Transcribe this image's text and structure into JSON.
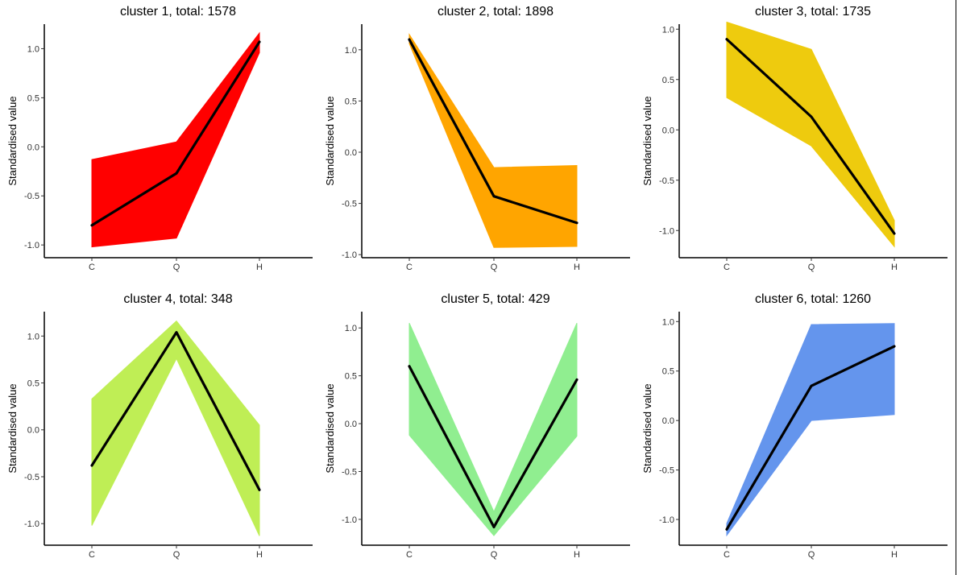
{
  "chart_data": [
    {
      "type": "area",
      "title": "cluster 1, total: 1578",
      "ylabel": "Standardised value",
      "categories": [
        "C",
        "Q",
        "H"
      ],
      "yticks": [
        1.0,
        0.5,
        0.0,
        -0.5,
        -1.0
      ],
      "ylim": [
        -1.13,
        1.25
      ],
      "color": "#ff0000",
      "band": {
        "upper": [
          -0.13,
          0.05,
          1.16
        ],
        "lower": [
          -1.02,
          -0.93,
          0.96
        ]
      },
      "mean": [
        -0.8,
        -0.27,
        1.07
      ]
    },
    {
      "type": "area",
      "title": "cluster 2, total: 1898",
      "ylabel": "Standardised value",
      "categories": [
        "C",
        "Q",
        "H"
      ],
      "yticks": [
        1.0,
        0.5,
        0.0,
        -0.5,
        -1.0
      ],
      "ylim": [
        -1.03,
        1.25
      ],
      "color": "#ffa500",
      "band": {
        "upper": [
          1.15,
          -0.15,
          -0.13
        ],
        "lower": [
          1.06,
          -0.93,
          -0.92
        ]
      },
      "mean": [
        1.1,
        -0.43,
        -0.69
      ]
    },
    {
      "type": "area",
      "title": "cluster 3, total: 1735",
      "ylabel": "Standardised value",
      "categories": [
        "C",
        "Q",
        "H"
      ],
      "yticks": [
        1.0,
        0.5,
        0.0,
        -0.5,
        -1.0
      ],
      "ylim": [
        -1.27,
        1.05
      ],
      "color": "#eecb0e",
      "band": {
        "upper": [
          1.07,
          0.8,
          -0.9
        ],
        "lower": [
          0.32,
          -0.16,
          -1.16
        ]
      },
      "mean": [
        0.9,
        0.13,
        -1.03
      ]
    },
    {
      "type": "area",
      "title": "cluster 4, total: 348",
      "ylabel": "Standardised value",
      "categories": [
        "C",
        "Q",
        "H"
      ],
      "yticks": [
        1.0,
        0.5,
        0.0,
        -0.5,
        -1.0
      ],
      "ylim": [
        -1.23,
        1.26
      ],
      "color": "#bfee55",
      "band": {
        "upper": [
          0.33,
          1.16,
          0.05
        ],
        "lower": [
          -1.02,
          0.76,
          -1.13
        ]
      },
      "mean": [
        -0.38,
        1.04,
        -0.64
      ]
    },
    {
      "type": "area",
      "title": "cluster 5, total: 429",
      "ylabel": "Standardised value",
      "categories": [
        "C",
        "Q",
        "H"
      ],
      "yticks": [
        1.0,
        0.5,
        0.0,
        -0.5,
        -1.0
      ],
      "ylim": [
        -1.27,
        1.17
      ],
      "color": "#90ee90",
      "band": {
        "upper": [
          1.05,
          -0.92,
          1.05
        ],
        "lower": [
          -0.12,
          -1.17,
          -0.13
        ]
      },
      "mean": [
        0.6,
        -1.08,
        0.46
      ]
    },
    {
      "type": "area",
      "title": "cluster 6, total: 1260",
      "ylabel": "Standardised value",
      "categories": [
        "C",
        "Q",
        "H"
      ],
      "yticks": [
        1.0,
        0.5,
        0.0,
        -0.5,
        -1.0
      ],
      "ylim": [
        -1.26,
        1.1
      ],
      "color": "#6495ed",
      "band": {
        "upper": [
          -1.04,
          0.97,
          0.98
        ],
        "lower": [
          -1.16,
          0.0,
          0.06
        ]
      },
      "mean": [
        -1.1,
        0.35,
        0.75
      ]
    }
  ]
}
